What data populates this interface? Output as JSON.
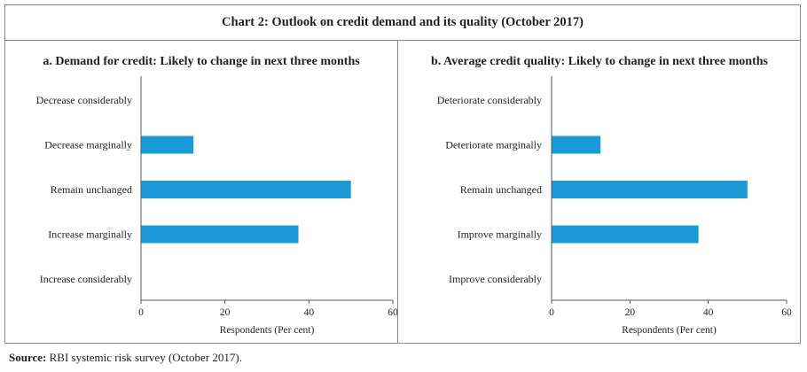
{
  "chart_title": "Chart 2: Outlook on credit demand and its quality (October 2017)",
  "source": {
    "label": "Source:",
    "text": " RBI systemic risk survey (October 2017)."
  },
  "colors": {
    "bar": "#1b9ad7",
    "axis": "#555555",
    "border": "#8a8a8a"
  },
  "chart_data": [
    {
      "type": "bar",
      "orientation": "horizontal",
      "title": "a. Demand for credit: Likely to change in next three months",
      "categories": [
        "Decrease considerably",
        "Decrease marginally",
        "Remain unchanged",
        "Increase marginally",
        "Increase considerably"
      ],
      "values": [
        0,
        12.5,
        50,
        37.5,
        0
      ],
      "xlabel": "Respondents (Per cent)",
      "xlim": [
        0,
        60
      ],
      "xticks": [
        "0",
        "20",
        "40",
        "60"
      ],
      "grid": false
    },
    {
      "type": "bar",
      "orientation": "horizontal",
      "title": "b. Average credit quality: Likely to change in next three months",
      "categories": [
        "Deteriorate considerably",
        "Deteriorate marginally",
        "Remain unchanged",
        "Improve marginally",
        "Improve considerably"
      ],
      "values": [
        0,
        12.5,
        50,
        37.5,
        0
      ],
      "xlabel": "Respondents (Per cent)",
      "xlim": [
        0,
        60
      ],
      "xticks": [
        "0",
        "20",
        "40",
        "60"
      ],
      "grid": false
    }
  ]
}
